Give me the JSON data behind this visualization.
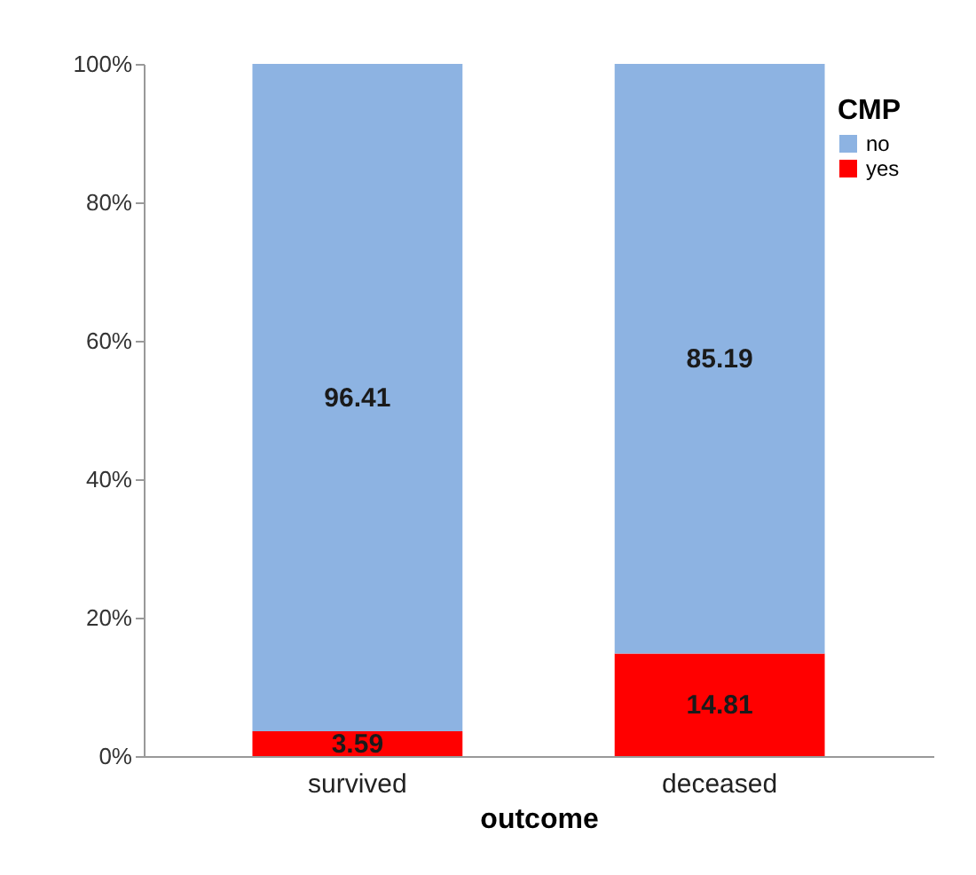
{
  "chart_data": {
    "type": "bar",
    "stacked": true,
    "xlabel": "outcome",
    "legend_title": "CMP",
    "legend": "top right",
    "data_labels": true,
    "grid": false,
    "categories": [
      "survived",
      "deceased"
    ],
    "series": [
      {
        "name": "yes",
        "color": "#ff0000",
        "values": [
          3.59,
          14.81
        ]
      },
      {
        "name": "no",
        "color": "#8db3e2",
        "values": [
          96.41,
          85.19
        ]
      }
    ],
    "ylim": [
      0,
      100
    ],
    "yticks": [
      {
        "value": 0,
        "label": "0%"
      },
      {
        "value": 20,
        "label": "20%"
      },
      {
        "value": 40,
        "label": "40%"
      },
      {
        "value": 60,
        "label": "60%"
      },
      {
        "value": 80,
        "label": "80%"
      },
      {
        "value": 100,
        "label": "100%"
      }
    ]
  }
}
